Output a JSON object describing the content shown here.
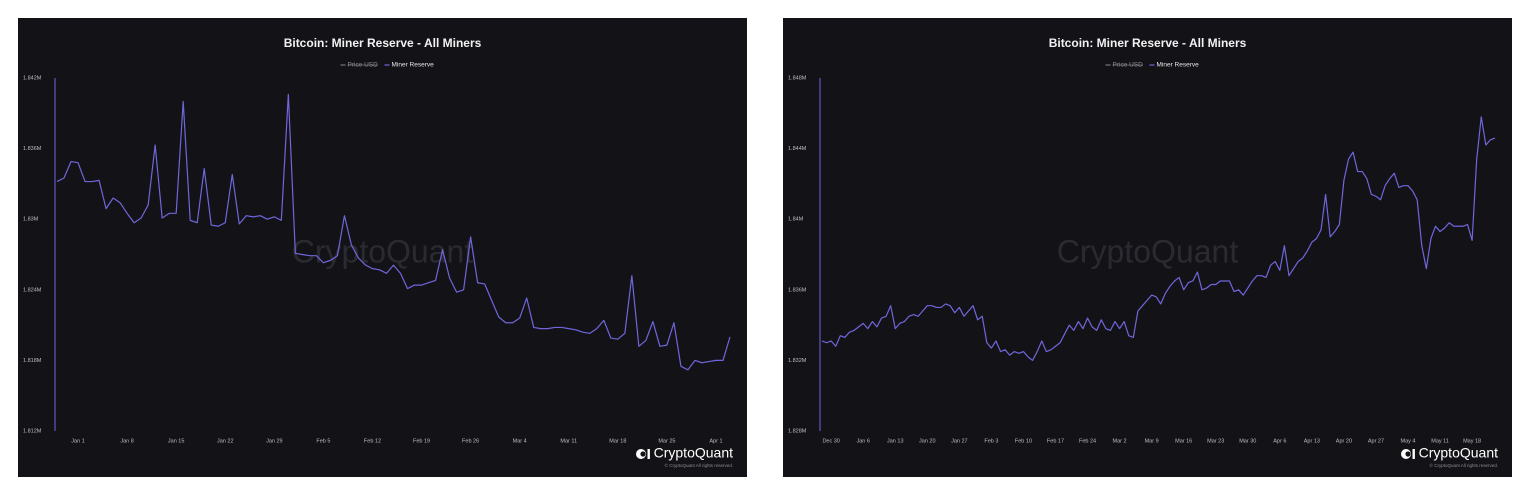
{
  "chart_data": [
    {
      "type": "line",
      "title": "Bitcoin: Miner Reserve - All Miners",
      "hidden_series": [
        {
          "name": "Price USD",
          "color": "#8a8a92"
        }
      ],
      "watermark": "CryptoQuant",
      "brand": "CryptoQuant",
      "copyright": "© CryptoQuant All rights reserved.",
      "grid": false,
      "ylim": [
        1812000,
        1842000
      ],
      "yticks": [
        {
          "value": 1812000,
          "label": "1.812M"
        },
        {
          "value": 1818000,
          "label": "1.818M"
        },
        {
          "value": 1824000,
          "label": "1.824M"
        },
        {
          "value": 1830000,
          "label": "1.83M"
        },
        {
          "value": 1836000,
          "label": "1.836M"
        },
        {
          "value": 1842000,
          "label": "1.842M"
        }
      ],
      "categories": [
        null,
        null,
        null,
        "Jan 1",
        null,
        null,
        null,
        null,
        null,
        null,
        "Jan 8",
        null,
        null,
        null,
        null,
        null,
        null,
        "Jan 15",
        null,
        null,
        null,
        null,
        null,
        null,
        "Jan 22",
        null,
        null,
        null,
        null,
        null,
        null,
        "Jan 29",
        null,
        null,
        null,
        null,
        null,
        null,
        "Feb 5",
        null,
        null,
        null,
        null,
        null,
        null,
        "Feb 12",
        null,
        null,
        null,
        null,
        null,
        null,
        "Feb 19",
        null,
        null,
        null,
        null,
        null,
        null,
        "Feb 26",
        null,
        null,
        null,
        null,
        null,
        null,
        "Mar 4",
        null,
        null,
        null,
        null,
        null,
        null,
        "Mar 11",
        null,
        null,
        null,
        null,
        null,
        null,
        "Mar 18",
        null,
        null,
        null,
        null,
        null,
        null,
        "Mar 25",
        null,
        null,
        null,
        null,
        null,
        null,
        "Apr 1",
        null,
        null
      ],
      "series": [
        {
          "name": "Miner Reserve",
          "color": "#6f66dc",
          "values": [
            1833200,
            1833500,
            1834900,
            1834800,
            1833200,
            1833200,
            1833300,
            1830900,
            1831800,
            1831400,
            1830500,
            1829700,
            1830100,
            1831200,
            1836300,
            1830100,
            1830500,
            1830500,
            1840000,
            1829900,
            1829700,
            1834300,
            1829500,
            1829400,
            1829700,
            1833800,
            1829600,
            1830300,
            1830200,
            1830300,
            1830000,
            1830200,
            1829900,
            1840600,
            1827100,
            1827000,
            1826900,
            1826900,
            1826300,
            1826500,
            1826900,
            1830300,
            1827800,
            1826700,
            1826100,
            1825800,
            1825700,
            1825400,
            1826100,
            1825400,
            1824100,
            1824400,
            1824400,
            1824600,
            1824800,
            1827400,
            1825000,
            1823800,
            1824000,
            1828500,
            1824600,
            1824500,
            1823100,
            1821700,
            1821200,
            1821200,
            1821600,
            1823300,
            1820800,
            1820700,
            1820700,
            1820800,
            1820800,
            1820700,
            1820600,
            1820400,
            1820300,
            1820700,
            1821400,
            1819900,
            1819800,
            1820300,
            1825200,
            1819200,
            1819700,
            1821300,
            1819200,
            1819300,
            1821200,
            1817500,
            1817200,
            1818000,
            1817800,
            1817900,
            1818000,
            1818000,
            1820000
          ]
        }
      ]
    },
    {
      "type": "line",
      "title": "Bitcoin: Miner Reserve - All Miners",
      "hidden_series": [
        {
          "name": "Price USD",
          "color": "#8a8a92"
        }
      ],
      "watermark": "CryptoQuant",
      "brand": "CryptoQuant",
      "copyright": "© CryptoQuant All rights reserved.",
      "grid": false,
      "ylim": [
        1828000,
        1848000
      ],
      "yticks": [
        {
          "value": 1828000,
          "label": "1.828M"
        },
        {
          "value": 1832000,
          "label": "1.832M"
        },
        {
          "value": 1836000,
          "label": "1.836M"
        },
        {
          "value": 1840000,
          "label": "1.84M"
        },
        {
          "value": 1844000,
          "label": "1.844M"
        },
        {
          "value": 1848000,
          "label": "1.848M"
        }
      ],
      "categories": [
        null,
        null,
        "Dec 30",
        null,
        null,
        null,
        null,
        null,
        null,
        "Jan 6",
        null,
        null,
        null,
        null,
        null,
        null,
        "Jan 13",
        null,
        null,
        null,
        null,
        null,
        null,
        "Jan 20",
        null,
        null,
        null,
        null,
        null,
        null,
        "Jan 27",
        null,
        null,
        null,
        null,
        null,
        null,
        "Feb 3",
        null,
        null,
        null,
        null,
        null,
        null,
        "Feb 10",
        null,
        null,
        null,
        null,
        null,
        null,
        "Feb 17",
        null,
        null,
        null,
        null,
        null,
        null,
        "Feb 24",
        null,
        null,
        null,
        null,
        null,
        null,
        "Mar 2",
        null,
        null,
        null,
        null,
        null,
        null,
        "Mar 9",
        null,
        null,
        null,
        null,
        null,
        null,
        "Mar 16",
        null,
        null,
        null,
        null,
        null,
        null,
        "Mar 23",
        null,
        null,
        null,
        null,
        null,
        null,
        "Mar 30",
        null,
        null,
        null,
        null,
        null,
        null,
        "Apr 6",
        null,
        null,
        null,
        null,
        null,
        null,
        "Apr 13",
        null,
        null,
        null,
        null,
        null,
        null,
        "Apr 20",
        null,
        null,
        null,
        null,
        null,
        null,
        "Apr 27",
        null,
        null,
        null,
        null,
        null,
        null,
        "May 4",
        null,
        null,
        null,
        null,
        null,
        null,
        "May 11",
        null,
        null,
        null,
        null,
        null,
        null,
        "May 18",
        null,
        null,
        null,
        null,
        null
      ],
      "series": [
        {
          "name": "Miner Reserve",
          "color": "#6f66dc",
          "values": [
            1833100,
            1833000,
            1833100,
            1832800,
            1833400,
            1833300,
            1833600,
            1833700,
            1833900,
            1834100,
            1833800,
            1834200,
            1833900,
            1834400,
            1834500,
            1835100,
            1833800,
            1834100,
            1834200,
            1834500,
            1834600,
            1834500,
            1834800,
            1835100,
            1835100,
            1835000,
            1835000,
            1835200,
            1835100,
            1834700,
            1835000,
            1834500,
            1834800,
            1835100,
            1834300,
            1834500,
            1833000,
            1832700,
            1833100,
            1832500,
            1832600,
            1832300,
            1832500,
            1832400,
            1832500,
            1832200,
            1832000,
            1832500,
            1833100,
            1832500,
            1832600,
            1832800,
            1833000,
            1833500,
            1834000,
            1833700,
            1834200,
            1833800,
            1834400,
            1833900,
            1833700,
            1834300,
            1833800,
            1833700,
            1834200,
            1833800,
            1834200,
            1833400,
            1833300,
            1834800,
            1835100,
            1835400,
            1835700,
            1835600,
            1835200,
            1835800,
            1836200,
            1836500,
            1836700,
            1836000,
            1836400,
            1836500,
            1837000,
            1836000,
            1836100,
            1836300,
            1836300,
            1836500,
            1836500,
            1836500,
            1835900,
            1836000,
            1835700,
            1836100,
            1836500,
            1836800,
            1836800,
            1836700,
            1837400,
            1837600,
            1837100,
            1838500,
            1836800,
            1837200,
            1837600,
            1837800,
            1838200,
            1838700,
            1838900,
            1839400,
            1841400,
            1839000,
            1839300,
            1839700,
            1842200,
            1843400,
            1843800,
            1842700,
            1842700,
            1842300,
            1841400,
            1841300,
            1841100,
            1841900,
            1842300,
            1842600,
            1841800,
            1841900,
            1841900,
            1841600,
            1841100,
            1838500,
            1837200,
            1838900,
            1839600,
            1839300,
            1839500,
            1839800,
            1839600,
            1839600,
            1839600,
            1839700,
            1838800,
            1843400,
            1845800,
            1844200,
            1844500,
            1844600
          ]
        }
      ]
    }
  ]
}
